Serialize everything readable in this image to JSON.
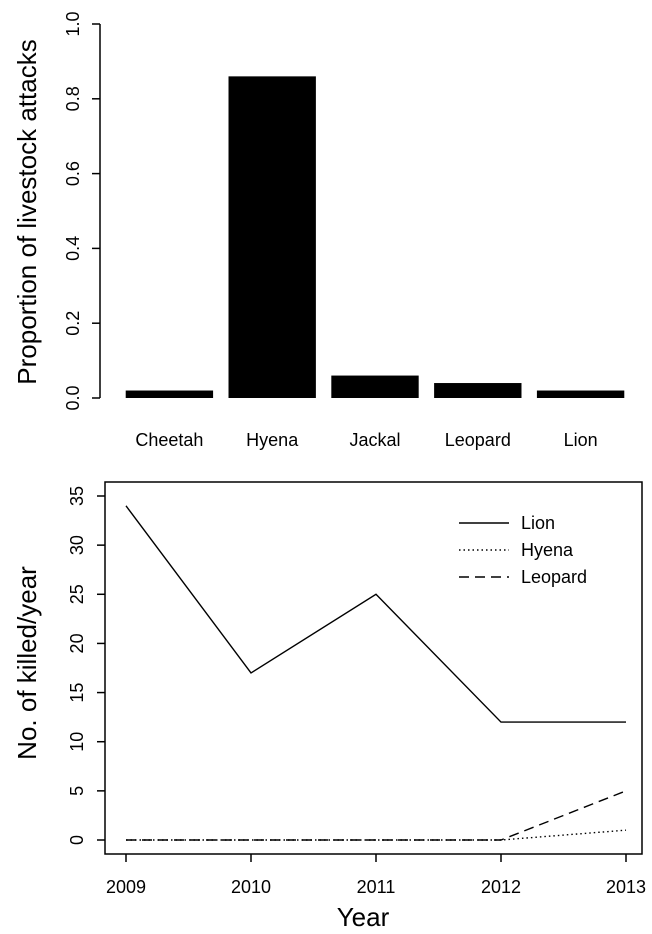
{
  "chart_data": [
    {
      "type": "bar",
      "title": "",
      "xlabel": "",
      "ylabel": "Proportion of livestock attacks",
      "categories": [
        "Cheetah",
        "Hyena",
        "Jackal",
        "Leopard",
        "Lion"
      ],
      "values": [
        0.02,
        0.86,
        0.06,
        0.04,
        0.02
      ],
      "ylim": [
        0,
        1.0
      ],
      "yticks": [
        "0.0",
        "0.2",
        "0.4",
        "0.6",
        "0.8",
        "1.0"
      ],
      "color": "#000000"
    },
    {
      "type": "line",
      "title": "",
      "xlabel": "Year",
      "ylabel": "No. of killed/year",
      "x": [
        2009,
        2010,
        2011,
        2012,
        2013
      ],
      "xticks": [
        "2009",
        "2010",
        "2011",
        "2012",
        "2013"
      ],
      "yticks": [
        "0",
        "5",
        "10",
        "15",
        "20",
        "25",
        "30",
        "35"
      ],
      "ylim": [
        0,
        35
      ],
      "legend_position": "top-right",
      "series": [
        {
          "name": "Lion",
          "values": [
            34,
            17,
            25,
            12,
            12
          ],
          "style": "solid"
        },
        {
          "name": "Hyena",
          "values": [
            0,
            0,
            0,
            0,
            1
          ],
          "style": "dotted"
        },
        {
          "name": "Leopard",
          "values": [
            0,
            0,
            0,
            0,
            5
          ],
          "style": "dashed"
        }
      ]
    }
  ]
}
